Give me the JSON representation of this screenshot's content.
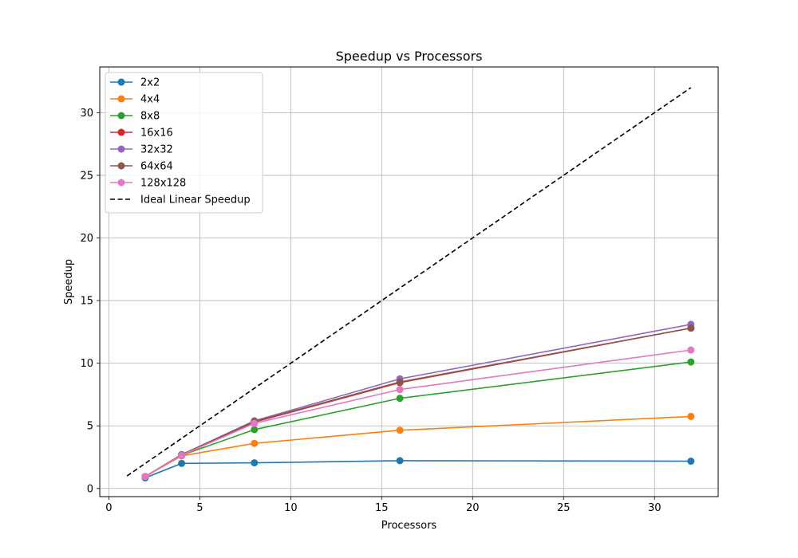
{
  "chart_data": {
    "type": "line",
    "title": "Speedup vs Processors",
    "xlabel": "Processors",
    "ylabel": "Speedup",
    "xlim": [
      -0.5,
      33.5
    ],
    "ylim": [
      -0.65,
      33.65
    ],
    "xticks": [
      0,
      5,
      10,
      15,
      20,
      25,
      30
    ],
    "yticks": [
      0,
      5,
      10,
      15,
      20,
      25,
      30
    ],
    "grid": true,
    "legend_position": "top-left",
    "series": [
      {
        "name": "2x2",
        "color": "#1f77b4",
        "marker": "circle",
        "x": [
          2,
          4,
          8,
          16,
          32
        ],
        "y": [
          0.85,
          2.0,
          2.05,
          2.22,
          2.18
        ]
      },
      {
        "name": "4x4",
        "color": "#ff7f0e",
        "marker": "circle",
        "x": [
          2,
          4,
          8,
          16,
          32
        ],
        "y": [
          0.95,
          2.6,
          3.6,
          4.65,
          5.75
        ]
      },
      {
        "name": "8x8",
        "color": "#2ca02c",
        "marker": "circle",
        "x": [
          2,
          4,
          8,
          16,
          32
        ],
        "y": [
          0.95,
          2.65,
          4.7,
          7.2,
          10.1
        ]
      },
      {
        "name": "16x16",
        "color": "#d62728",
        "marker": "circle",
        "x": [
          2,
          4,
          8,
          16,
          32
        ],
        "y": [
          0.95,
          2.7,
          5.3,
          8.45,
          12.8
        ]
      },
      {
        "name": "32x32",
        "color": "#9467bd",
        "marker": "circle",
        "x": [
          2,
          4,
          8,
          16,
          32
        ],
        "y": [
          0.95,
          2.7,
          5.4,
          8.75,
          13.1
        ]
      },
      {
        "name": "64x64",
        "color": "#8c564b",
        "marker": "circle",
        "x": [
          2,
          4,
          8,
          16,
          32
        ],
        "y": [
          0.95,
          2.7,
          5.35,
          8.5,
          12.8
        ]
      },
      {
        "name": "128x128",
        "color": "#e377c2",
        "marker": "circle",
        "x": [
          2,
          4,
          8,
          16,
          32
        ],
        "y": [
          0.95,
          2.65,
          5.2,
          7.9,
          11.05
        ]
      },
      {
        "name": "Ideal Linear Speedup",
        "color": "#000000",
        "marker": "none",
        "dashed": true,
        "x": [
          1,
          32
        ],
        "y": [
          1,
          32
        ]
      }
    ]
  }
}
